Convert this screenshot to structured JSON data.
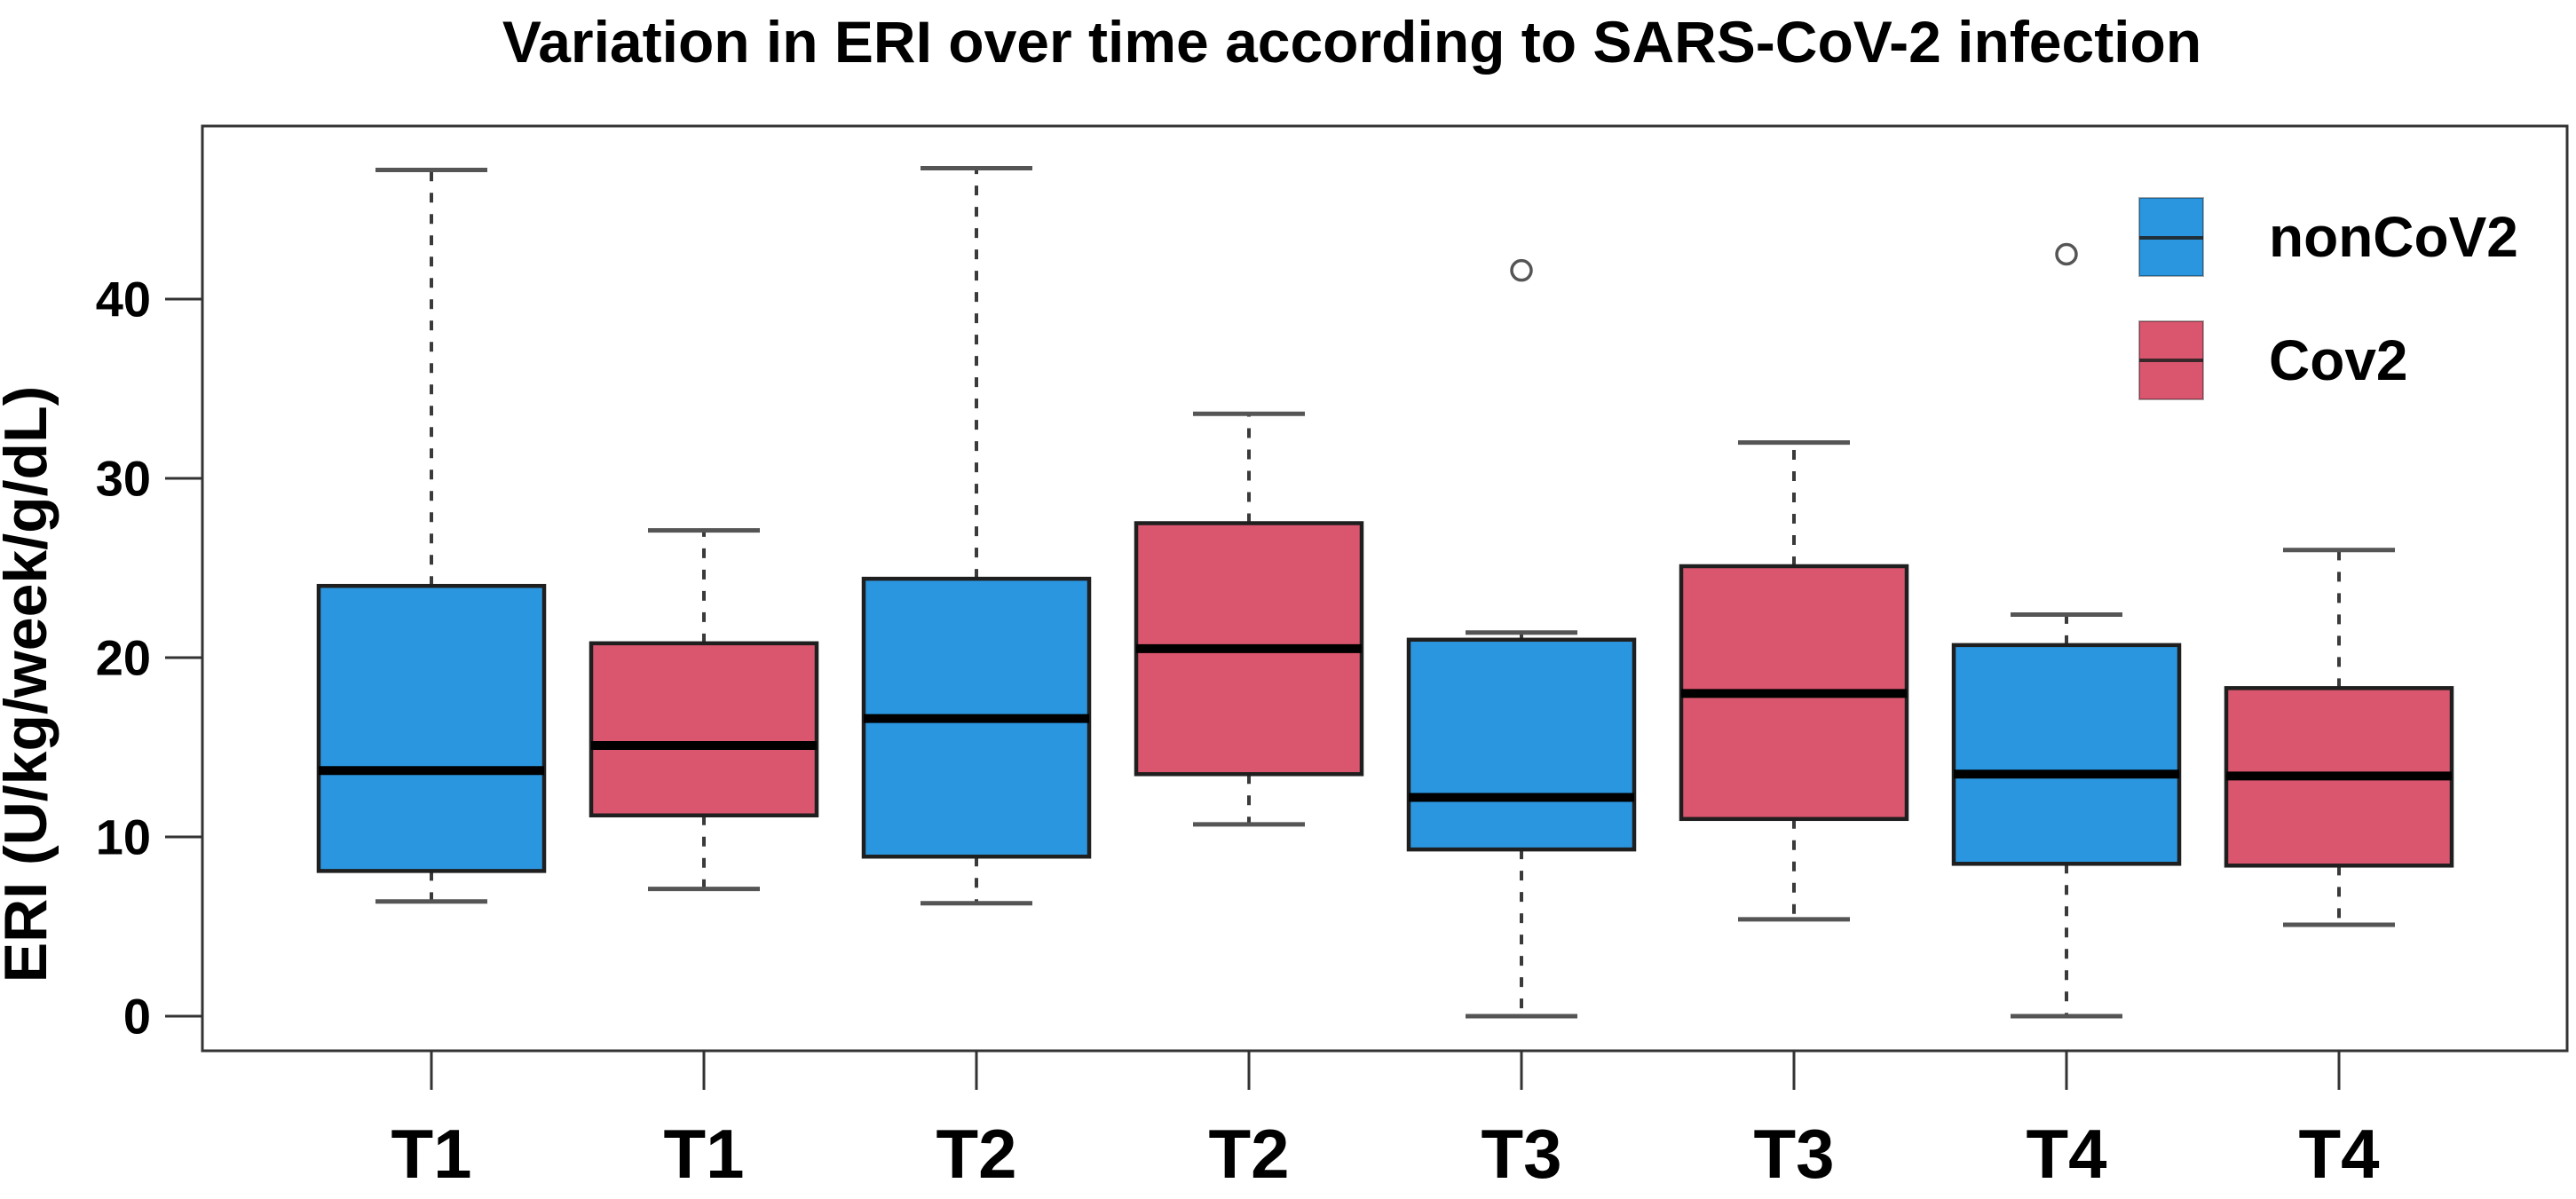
{
  "title": "Variation in ERI over time according to SARS-CoV-2 infection",
  "colors": {
    "background": "#ffffff",
    "noncov2_fill": "#2B96E0",
    "cov2_fill": "#D9566E",
    "box_border": "#1f1f1f",
    "median_line": "#000000",
    "whisker_line": "#3a3a3a",
    "whisker_cap": "#555555",
    "frame": "#333333",
    "outlier_stroke": "#555555",
    "text": "#000000"
  },
  "chart_data": {
    "type": "boxplot",
    "title": "Variation in ERI over time according to SARS-CoV-2 infection",
    "xlabel": "",
    "ylabel": "ERI (U/kg/week/g/dL)",
    "yticks": [
      0,
      10,
      20,
      30,
      40
    ],
    "ylim": [
      -1.9,
      49.6
    ],
    "grid": "off",
    "categories": [
      "T1",
      "T1",
      "T2",
      "T2",
      "T3",
      "T3",
      "T4",
      "T4"
    ],
    "legend": {
      "position": "top-right",
      "items": [
        {
          "label": "nonCoV2",
          "color": "#2B96E0"
        },
        {
          "label": "Cov2",
          "color": "#D9566E"
        }
      ]
    },
    "boxes": [
      {
        "category": "T1",
        "group": "nonCoV2",
        "color": "#2B96E0",
        "whisker_low": 6.4,
        "q1": 8.1,
        "median": 13.7,
        "q3": 24.0,
        "whisker_high": 47.2,
        "outliers": []
      },
      {
        "category": "T1",
        "group": "Cov2",
        "color": "#D9566E",
        "whisker_low": 7.1,
        "q1": 11.2,
        "median": 15.1,
        "q3": 20.8,
        "whisker_high": 27.1,
        "outliers": []
      },
      {
        "category": "T2",
        "group": "nonCoV2",
        "color": "#2B96E0",
        "whisker_low": 6.3,
        "q1": 8.9,
        "median": 16.6,
        "q3": 24.4,
        "whisker_high": 47.3,
        "outliers": []
      },
      {
        "category": "T2",
        "group": "Cov2",
        "color": "#D9566E",
        "whisker_low": 10.7,
        "q1": 13.5,
        "median": 20.5,
        "q3": 27.5,
        "whisker_high": 33.6,
        "outliers": []
      },
      {
        "category": "T3",
        "group": "nonCoV2",
        "color": "#2B96E0",
        "whisker_low": 0.0,
        "q1": 9.3,
        "median": 12.2,
        "q3": 21.0,
        "whisker_high": 21.4,
        "outliers": [
          41.6
        ]
      },
      {
        "category": "T3",
        "group": "Cov2",
        "color": "#D9566E",
        "whisker_low": 5.4,
        "q1": 11.0,
        "median": 18.0,
        "q3": 25.1,
        "whisker_high": 32.0,
        "outliers": []
      },
      {
        "category": "T4",
        "group": "nonCoV2",
        "color": "#2B96E0",
        "whisker_low": 0.0,
        "q1": 8.5,
        "median": 13.5,
        "q3": 20.7,
        "whisker_high": 22.4,
        "outliers": [
          42.5
        ]
      },
      {
        "category": "T4",
        "group": "Cov2",
        "color": "#D9566E",
        "whisker_low": 5.1,
        "q1": 8.4,
        "median": 13.4,
        "q3": 18.3,
        "whisker_high": 26.0,
        "outliers": []
      }
    ]
  }
}
